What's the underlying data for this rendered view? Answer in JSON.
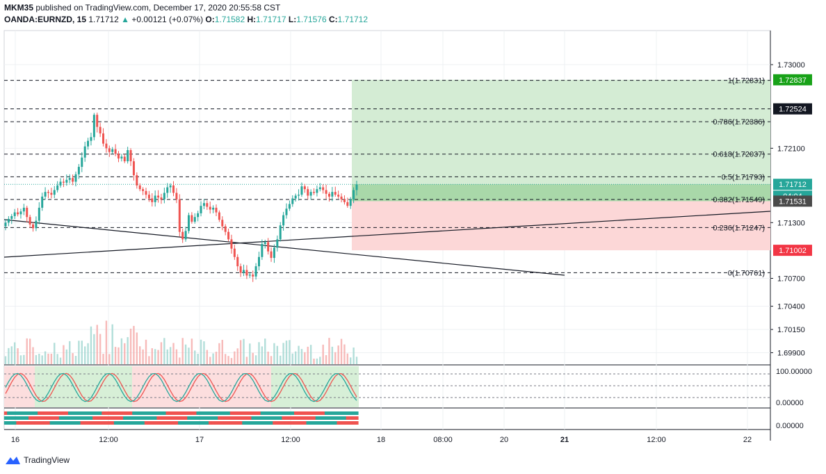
{
  "header": {
    "publisher": "MKM35",
    "published_text": "published on TradingView.com, December 17, 2020 20:55:58 CST",
    "symbol": "OANDA:EURNZD, 15",
    "last": "1.71712",
    "change_arrow": "▲",
    "change": "+0.00121 (+0.07%)",
    "o_label": "O:",
    "o": "1.71582",
    "h_label": "H:",
    "h": "1.71717",
    "l_label": "L:",
    "l": "1.71576",
    "c_label": "C:",
    "c": "1.71712"
  },
  "footer": {
    "brand": "TradingView"
  },
  "colors": {
    "up": "#26a69a",
    "down": "#ef5350",
    "long_zone": "#d4ecd4",
    "short_zone": "#fcd7d7",
    "current_zone": "#a9d8a9",
    "green_tag": "#18a218",
    "red_tag": "#f23645",
    "black_tag": "#131722",
    "price_tag": "#26a69a",
    "gray_tag": "#4a4a4a"
  },
  "chart_data": {
    "type": "candlestick",
    "symbol": "EURNZD",
    "interval": "15",
    "y_range": [
      1.6975,
      1.733
    ],
    "y_ticks": [
      "1.73000",
      "1.72100",
      "1.71300",
      "1.70700",
      "1.70400",
      "1.70150",
      "1.69900"
    ],
    "y_tick_values": [
      1.73,
      1.721,
      1.713,
      1.707,
      1.704,
      1.7015,
      1.699
    ],
    "x_ticks": [
      "16",
      "12:00",
      "17",
      "12:00",
      "18",
      "08:00",
      "20",
      "21",
      "12:00",
      "22"
    ],
    "x_ticks_bold": [
      false,
      false,
      false,
      false,
      false,
      false,
      false,
      true,
      false,
      false
    ],
    "fib_levels": [
      {
        "ratio": "1",
        "price": 1.72831,
        "label": "1(1.72831)"
      },
      {
        "ratio": "0.786",
        "price": 1.72386,
        "label": "0.786(1.72386)"
      },
      {
        "ratio": "0.618",
        "price": 1.72037,
        "label": "0.618(1.72037)"
      },
      {
        "ratio": "0.5",
        "price": 1.71793,
        "label": "0.5(1.71793)"
      },
      {
        "ratio": "0.382",
        "price": 1.71549,
        "label": "0.382(1.71549)"
      },
      {
        "ratio": "0.236",
        "price": 1.71247,
        "label": "0.236(1.71247)"
      },
      {
        "ratio": "0",
        "price": 1.70761,
        "label": "0(1.70761)"
      }
    ],
    "extra_level": 1.72524,
    "position": {
      "target": 1.72837,
      "entry": 1.71531,
      "stop": 1.71002,
      "current": 1.71712
    },
    "price_tags": [
      {
        "text": "1.72837",
        "price": 1.72837,
        "kind": "green"
      },
      {
        "text": "1.72524",
        "price": 1.72524,
        "kind": "black"
      },
      {
        "text": "1.71712",
        "price": 1.71712,
        "kind": "price"
      },
      {
        "text": "04:04",
        "price": 1.71655,
        "kind": "countdown"
      },
      {
        "text": "1.71531",
        "price": 1.71531,
        "kind": "gray"
      },
      {
        "text": "1.71002",
        "price": 1.71002,
        "kind": "red"
      }
    ],
    "closes_approx": [
      1.713,
      1.7134,
      1.7137,
      1.7141,
      1.7139,
      1.7142,
      1.7146,
      1.7136,
      1.7128,
      1.7124,
      1.7132,
      1.7146,
      1.7158,
      1.7163,
      1.7162,
      1.716,
      1.7165,
      1.717,
      1.7174,
      1.7173,
      1.7176,
      1.7178,
      1.7174,
      1.7182,
      1.719,
      1.72,
      1.7212,
      1.7218,
      1.7222,
      1.7246,
      1.7233,
      1.7226,
      1.7215,
      1.721,
      1.7206,
      1.7209,
      1.7204,
      1.7199,
      1.7201,
      1.7196,
      1.7208,
      1.7196,
      1.7181,
      1.717,
      1.7166,
      1.7164,
      1.716,
      1.7156,
      1.7152,
      1.7159,
      1.7157,
      1.7155,
      1.7162,
      1.7168,
      1.717,
      1.7162,
      1.7155,
      1.712,
      1.7112,
      1.7121,
      1.7138,
      1.7131,
      1.7136,
      1.714,
      1.7148,
      1.7151,
      1.7147,
      1.7144,
      1.7146,
      1.7141,
      1.7133,
      1.7126,
      1.712,
      1.7112,
      1.7102,
      1.7093,
      1.7083,
      1.7076,
      1.7079,
      1.7073,
      1.7074,
      1.7072,
      1.7083,
      1.7093,
      1.7107,
      1.7109,
      1.7099,
      1.7092,
      1.7103,
      1.7112,
      1.7127,
      1.7138,
      1.7145,
      1.715,
      1.7156,
      1.7159,
      1.716,
      1.7169,
      1.7166,
      1.7159,
      1.7163,
      1.7162,
      1.7166,
      1.7168,
      1.7165,
      1.7161,
      1.7158,
      1.7163,
      1.716,
      1.7158,
      1.7155,
      1.7152,
      1.7148,
      1.7155,
      1.7165,
      1.7171
    ],
    "stoch_levels": [
      "100.00000",
      "0.00000"
    ],
    "bottom_level": "0.00000"
  }
}
